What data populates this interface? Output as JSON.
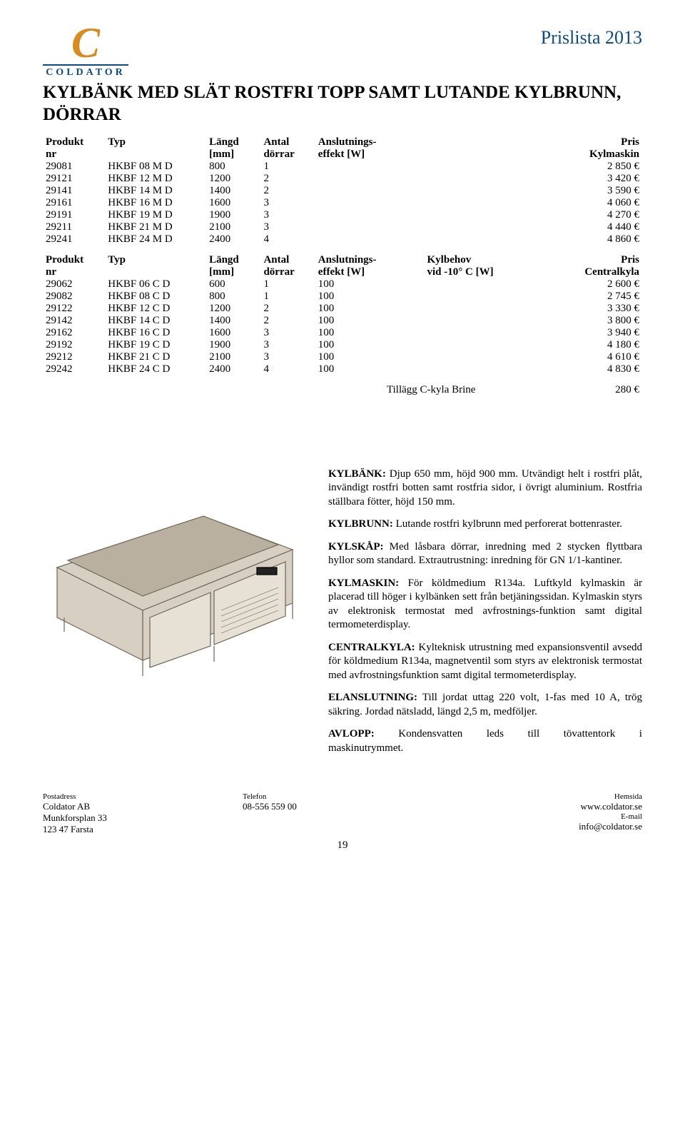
{
  "brand": {
    "logo_letter": "C",
    "logo_name": "COLDATOR"
  },
  "doc_title_right": "Prislista 2013",
  "main_title": "KYLBÄNK MED SLÄT ROSTFRI TOPP SAMT LUTANDE KYLBRUNN, DÖRRAR",
  "table1": {
    "headers": {
      "c1a": "Produkt",
      "c1b": "nr",
      "c2a": "Typ",
      "c2b": "",
      "c3a": "Längd",
      "c3b": "[mm]",
      "c4a": "Antal",
      "c4b": "dörrar",
      "c5a": "Anslutnings-",
      "c5b": "effekt [W]",
      "c6a": "",
      "c6b": "",
      "c7a": "Pris",
      "c7b": "Kylmaskin"
    },
    "rows": [
      [
        "29081",
        "HKBF 08 M D",
        "800",
        "1",
        "",
        "",
        "2 850 €"
      ],
      [
        "29121",
        "HKBF 12 M D",
        "1200",
        "2",
        "",
        "",
        "3 420 €"
      ],
      [
        "29141",
        "HKBF 14 M D",
        "1400",
        "2",
        "",
        "",
        "3 590 €"
      ],
      [
        "29161",
        "HKBF 16 M D",
        "1600",
        "3",
        "",
        "",
        "4 060 €"
      ],
      [
        "29191",
        "HKBF 19 M D",
        "1900",
        "3",
        "",
        "",
        "4 270 €"
      ],
      [
        "29211",
        "HKBF 21 M D",
        "2100",
        "3",
        "",
        "",
        "4 440 €"
      ],
      [
        "29241",
        "HKBF 24 M D",
        "2400",
        "4",
        "",
        "",
        "4 860 €"
      ]
    ],
    "col_widths": [
      "80",
      "130",
      "70",
      "70",
      "140",
      "150",
      "130"
    ],
    "align": [
      "left",
      "left",
      "left",
      "left",
      "left",
      "left",
      "right"
    ]
  },
  "table2": {
    "headers": {
      "c1a": "Produkt",
      "c1b": "nr",
      "c2a": "Typ",
      "c2b": "",
      "c3a": "Längd",
      "c3b": "[mm]",
      "c4a": "Antal",
      "c4b": "dörrar",
      "c5a": "Anslutnings-",
      "c5b": "effekt [W]",
      "c6a": "Kylbehov",
      "c6b": "vid -10° C [W]",
      "c7a": "Pris",
      "c7b": "Centralkyla"
    },
    "rows": [
      [
        "29062",
        "HKBF 06 C D",
        "600",
        "1",
        "100",
        "",
        "2 600 €"
      ],
      [
        "29082",
        "HKBF 08 C D",
        "800",
        "1",
        "100",
        "",
        "2 745 €"
      ],
      [
        "29122",
        "HKBF 12 C D",
        "1200",
        "2",
        "100",
        "",
        "3 330 €"
      ],
      [
        "29142",
        "HKBF 14 C D",
        "1400",
        "2",
        "100",
        "",
        "3 800 €"
      ],
      [
        "29162",
        "HKBF 16 C D",
        "1600",
        "3",
        "100",
        "",
        "3 940 €"
      ],
      [
        "29192",
        "HKBF 19 C D",
        "1900",
        "3",
        "100",
        "",
        "4 180 €"
      ],
      [
        "29212",
        "HKBF 21 C D",
        "2100",
        "3",
        "100",
        "",
        "4 610 €"
      ],
      [
        "29242",
        "HKBF 24 C D",
        "2400",
        "4",
        "100",
        "",
        "4 830 €"
      ]
    ],
    "col_widths": [
      "80",
      "130",
      "70",
      "70",
      "140",
      "150",
      "130"
    ],
    "align": [
      "left",
      "left",
      "left",
      "left",
      "left",
      "left",
      "right"
    ]
  },
  "addendum": {
    "label": "Tillägg C-kyla Brine",
    "price": "280 €"
  },
  "descriptions": [
    {
      "key": "KYLBÄNK:",
      "text": " Djup 650 mm, höjd 900 mm. Utvändigt helt i rostfri plåt, invändigt rostfri botten samt rostfria sidor, i övrigt aluminium. Rostfria ställbara fötter, höjd 150 mm."
    },
    {
      "key": "KYLBRUNN:",
      "text": " Lutande rostfri kylbrunn med perforerat bottenraster."
    },
    {
      "key": "KYLSKÅP:",
      "text": " Med låsbara dörrar, inredning med 2 stycken flyttbara hyllor som standard. Extrautrustning: inredning för GN 1/1-kantiner."
    },
    {
      "key": "KYLMASKIN:",
      "text": " För köldmedium R134a. Luftkyld kylmaskin är placerad till höger i kylbänken sett från betjäningssidan. Kylmaskin styrs av elektronisk termostat med avfrostnings-funktion samt digital termometerdisplay."
    },
    {
      "key": "CENTRALKYLA:",
      "text": " Kylteknisk utrustning med expansionsventil avsedd för köldmedium R134a, magnetventil som styrs av elektronisk termostat med avfrostningsfunktion samt digital termometerdisplay."
    },
    {
      "key": "ELANSLUTNING:",
      "text": " Till jordat uttag 220 volt, 1-fas med 10 A, trög säkring. Jordad nätsladd, längd 2,5 m, medföljer."
    }
  ],
  "avlopp": {
    "key": "AVLOPP:",
    "w1": "Kondensvatten",
    "w2": "leds",
    "w3": "till",
    "w4": "tövattentork",
    "w5": "i",
    "tail": "maskinutrymmet."
  },
  "footer": {
    "post_label": "Postadress",
    "post1": "Coldator AB",
    "post2": "Munkforsplan 33",
    "post3": "123 47 Farsta",
    "tel_label": "Telefon",
    "tel": "08-556 559 00",
    "web_label": "Hemsida",
    "web": "www.coldator.se",
    "mail_label": "E-mail",
    "mail": "info@coldator.se"
  },
  "page_number": "19",
  "style": {
    "accent_color": "#0a4a8a",
    "logo_color": "#d88b1f",
    "body_font": "Times New Roman",
    "title_fontsize_pt": 19,
    "table_fontsize_pt": 11,
    "illus_fill": "#d7cfc2",
    "illus_stroke": "#6f6657"
  }
}
